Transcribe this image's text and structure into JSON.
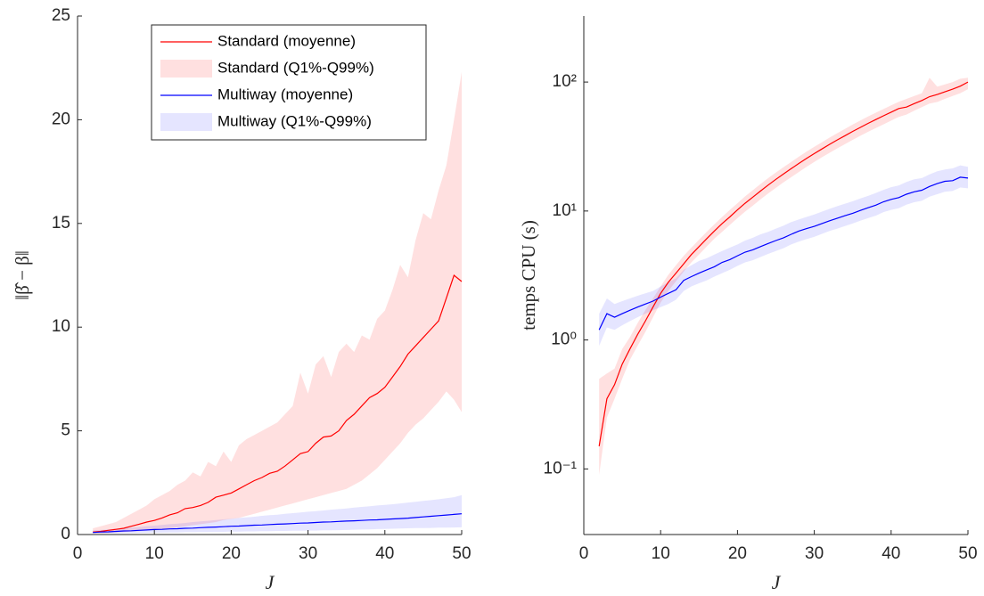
{
  "chart_data": [
    {
      "type": "line",
      "xlabel": "J",
      "ylabel": "‖β̂ − β‖",
      "legend": "upper left",
      "x": [
        2,
        3,
        4,
        5,
        6,
        7,
        8,
        9,
        10,
        11,
        12,
        13,
        14,
        15,
        16,
        17,
        18,
        19,
        20,
        21,
        22,
        23,
        24,
        25,
        26,
        27,
        28,
        29,
        30,
        31,
        32,
        33,
        34,
        35,
        36,
        37,
        38,
        39,
        40,
        41,
        42,
        43,
        44,
        45,
        46,
        47,
        48,
        49,
        50
      ],
      "xlim": [
        0,
        50
      ],
      "xticks": [
        0,
        10,
        20,
        30,
        40,
        50
      ],
      "ylim": [
        0,
        25
      ],
      "yticks": [
        0,
        5,
        10,
        15,
        20,
        25
      ],
      "series": [
        {
          "name": "Standard (moyenne)",
          "color": "#ff0000",
          "values": [
            0.12,
            0.15,
            0.2,
            0.25,
            0.3,
            0.4,
            0.5,
            0.6,
            0.68,
            0.8,
            0.95,
            1.05,
            1.25,
            1.3,
            1.4,
            1.55,
            1.8,
            1.9,
            2.0,
            2.2,
            2.4,
            2.6,
            2.75,
            2.95,
            3.05,
            3.3,
            3.6,
            3.9,
            4.0,
            4.4,
            4.7,
            4.75,
            5.0,
            5.5,
            5.8,
            6.2,
            6.6,
            6.8,
            7.1,
            7.6,
            8.1,
            8.7,
            9.1,
            9.5,
            9.9,
            10.3,
            11.4,
            12.5,
            12.2
          ]
        },
        {
          "name": "Standard (Q1%-Q99%)",
          "color": "#ff0000",
          "alpha": 0.12,
          "low": [
            0.05,
            0.06,
            0.08,
            0.1,
            0.12,
            0.14,
            0.16,
            0.2,
            0.22,
            0.25,
            0.3,
            0.35,
            0.4,
            0.45,
            0.5,
            0.55,
            0.6,
            0.7,
            0.75,
            0.8,
            0.9,
            1.0,
            1.1,
            1.2,
            1.3,
            1.4,
            1.5,
            1.6,
            1.7,
            1.8,
            1.9,
            2.0,
            2.1,
            2.2,
            2.4,
            2.6,
            2.9,
            3.2,
            3.6,
            4.0,
            4.4,
            4.9,
            5.3,
            5.6,
            6.0,
            6.4,
            6.9,
            6.5,
            5.9
          ],
          "high": [
            0.3,
            0.4,
            0.5,
            0.6,
            0.8,
            1.0,
            1.2,
            1.4,
            1.7,
            1.9,
            2.1,
            2.4,
            2.6,
            3.0,
            2.8,
            3.5,
            3.3,
            4.0,
            3.5,
            4.3,
            4.6,
            4.8,
            5.0,
            5.2,
            5.4,
            5.8,
            6.2,
            7.8,
            6.8,
            8.2,
            8.6,
            7.6,
            8.8,
            9.2,
            8.8,
            9.6,
            9.4,
            10.4,
            10.8,
            11.8,
            13.0,
            12.4,
            14.2,
            15.5,
            15.2,
            16.6,
            17.8,
            20.0,
            22.3
          ]
        },
        {
          "name": "Multiway (moyenne)",
          "color": "#0000ff",
          "values": [
            0.1,
            0.12,
            0.13,
            0.15,
            0.17,
            0.18,
            0.2,
            0.22,
            0.24,
            0.25,
            0.27,
            0.28,
            0.3,
            0.31,
            0.33,
            0.35,
            0.36,
            0.38,
            0.4,
            0.41,
            0.43,
            0.45,
            0.46,
            0.48,
            0.5,
            0.51,
            0.53,
            0.55,
            0.56,
            0.58,
            0.6,
            0.61,
            0.63,
            0.65,
            0.66,
            0.68,
            0.7,
            0.71,
            0.73,
            0.75,
            0.77,
            0.79,
            0.82,
            0.85,
            0.88,
            0.91,
            0.94,
            0.97,
            1.0
          ]
        },
        {
          "name": "Multiway (Q1%-Q99%)",
          "color": "#0000ff",
          "alpha": 0.1,
          "low": [
            0.05,
            0.05,
            0.06,
            0.06,
            0.07,
            0.07,
            0.08,
            0.08,
            0.09,
            0.09,
            0.1,
            0.1,
            0.11,
            0.11,
            0.12,
            0.12,
            0.13,
            0.13,
            0.14,
            0.14,
            0.15,
            0.15,
            0.16,
            0.16,
            0.17,
            0.17,
            0.18,
            0.18,
            0.19,
            0.19,
            0.2,
            0.2,
            0.21,
            0.22,
            0.23,
            0.24,
            0.25,
            0.26,
            0.27,
            0.28,
            0.29,
            0.3,
            0.31,
            0.31,
            0.32,
            0.33,
            0.33,
            0.34,
            0.35
          ],
          "high": [
            0.2,
            0.22,
            0.25,
            0.28,
            0.3,
            0.33,
            0.36,
            0.4,
            0.43,
            0.46,
            0.5,
            0.53,
            0.56,
            0.6,
            0.63,
            0.66,
            0.7,
            0.73,
            0.76,
            0.8,
            0.83,
            0.86,
            0.9,
            0.93,
            0.96,
            1.0,
            1.03,
            1.06,
            1.1,
            1.13,
            1.16,
            1.2,
            1.23,
            1.26,
            1.3,
            1.33,
            1.36,
            1.4,
            1.43,
            1.46,
            1.5,
            1.54,
            1.58,
            1.62,
            1.66,
            1.7,
            1.75,
            1.8,
            1.9
          ]
        }
      ]
    },
    {
      "type": "line",
      "xlabel": "J",
      "ylabel": "temps CPU (s)",
      "log_y": true,
      "x": [
        2,
        3,
        4,
        5,
        6,
        7,
        8,
        9,
        10,
        11,
        12,
        13,
        14,
        15,
        16,
        17,
        18,
        19,
        20,
        21,
        22,
        23,
        24,
        25,
        26,
        27,
        28,
        29,
        30,
        31,
        32,
        33,
        34,
        35,
        36,
        37,
        38,
        39,
        40,
        41,
        42,
        43,
        44,
        45,
        46,
        47,
        48,
        49,
        50
      ],
      "xlim": [
        0,
        50
      ],
      "xticks": [
        0,
        10,
        20,
        30,
        40,
        50
      ],
      "ylim": [
        0.031,
        325
      ],
      "yticks": [
        {
          "value": 0.1,
          "label": "10⁻¹"
        },
        {
          "value": 1,
          "label": "10⁰"
        },
        {
          "value": 10,
          "label": "10¹"
        },
        {
          "value": 100,
          "label": "10²"
        }
      ],
      "series": [
        {
          "color": "#ff0000",
          "alpha": 0.12,
          "low": [
            0.09,
            0.25,
            0.35,
            0.5,
            0.7,
            0.9,
            1.15,
            1.5,
            1.95,
            2.4,
            2.85,
            3.4,
            4.0,
            4.6,
            5.3,
            6.1,
            6.9,
            7.8,
            8.8,
            9.9,
            11.0,
            12.3,
            13.7,
            15.1,
            16.7,
            18.3,
            20.1,
            22.0,
            24.0,
            26.1,
            28.3,
            30.6,
            33.0,
            35.6,
            38.3,
            41.1,
            44.0,
            47.0,
            50.2,
            53.6,
            56,
            60,
            64,
            68,
            70,
            74,
            78,
            82,
            88
          ],
          "high": [
            0.5,
            0.55,
            0.6,
            0.85,
            1.05,
            1.35,
            1.7,
            2.1,
            2.6,
            3.2,
            3.8,
            4.5,
            5.2,
            6.0,
            6.9,
            7.9,
            9.0,
            10.2,
            11.5,
            13.0,
            14.5,
            16.2,
            18.0,
            19.9,
            21.9,
            24.0,
            26.4,
            28.9,
            31.5,
            34.2,
            37.1,
            40.2,
            43.4,
            46.8,
            50.3,
            54.0,
            57.9,
            61.8,
            66.0,
            70.4,
            74,
            78,
            82,
            108,
            92,
            96,
            100,
            106,
            108
          ]
        },
        {
          "color": "#0000ff",
          "alpha": 0.1,
          "low": [
            0.9,
            1.25,
            1.2,
            1.3,
            1.4,
            1.5,
            1.6,
            1.7,
            1.8,
            1.9,
            2.05,
            2.4,
            2.6,
            2.75,
            2.9,
            3.1,
            3.3,
            3.5,
            3.75,
            4.0,
            4.15,
            4.4,
            4.65,
            4.9,
            5.15,
            5.5,
            5.8,
            6.05,
            6.3,
            6.65,
            7.0,
            7.3,
            7.65,
            8.0,
            8.4,
            8.8,
            9.2,
            9.8,
            10.2,
            10.5,
            11.2,
            11.7,
            12.0,
            12.9,
            13.5,
            14.1,
            14.3,
            15.2,
            15.0
          ],
          "high": [
            1.6,
            2.1,
            1.9,
            2.0,
            2.1,
            2.2,
            2.3,
            2.4,
            2.6,
            2.8,
            3.0,
            3.5,
            3.8,
            4.1,
            4.3,
            4.6,
            4.9,
            5.2,
            5.5,
            5.9,
            6.2,
            6.6,
            6.9,
            7.3,
            7.7,
            8.2,
            8.6,
            9.0,
            9.4,
            9.9,
            10.4,
            10.9,
            11.4,
            11.9,
            12.5,
            13.1,
            13.8,
            14.6,
            15.3,
            15.8,
            16.8,
            17.6,
            18.0,
            19.2,
            20.3,
            21.0,
            21.4,
            22.6,
            22.0
          ]
        },
        {
          "color": "#ff0000",
          "values": [
            0.15,
            0.35,
            0.45,
            0.65,
            0.85,
            1.1,
            1.4,
            1.8,
            2.3,
            2.8,
            3.3,
            3.9,
            4.6,
            5.3,
            6.1,
            7.0,
            8.0,
            9.0,
            10.2,
            11.5,
            12.8,
            14.3,
            15.9,
            17.6,
            19.4,
            21.3,
            23.4,
            25.6,
            27.9,
            30.3,
            32.9,
            35.6,
            38.4,
            41.4,
            44.5,
            47.8,
            51.2,
            54.7,
            58.4,
            62.3,
            64,
            68,
            72,
            77,
            80,
            84,
            88,
            93,
            100
          ]
        },
        {
          "color": "#0000ff",
          "values": [
            1.2,
            1.6,
            1.5,
            1.6,
            1.7,
            1.8,
            1.9,
            2.0,
            2.15,
            2.3,
            2.45,
            2.9,
            3.1,
            3.3,
            3.5,
            3.7,
            4.0,
            4.2,
            4.5,
            4.8,
            5.0,
            5.3,
            5.6,
            5.9,
            6.2,
            6.6,
            7.0,
            7.3,
            7.6,
            8.0,
            8.4,
            8.8,
            9.2,
            9.6,
            10.1,
            10.6,
            11.1,
            11.8,
            12.3,
            12.7,
            13.5,
            14.1,
            14.5,
            15.5,
            16.3,
            17.0,
            17.2,
            18.3,
            18.0
          ]
        }
      ]
    }
  ]
}
